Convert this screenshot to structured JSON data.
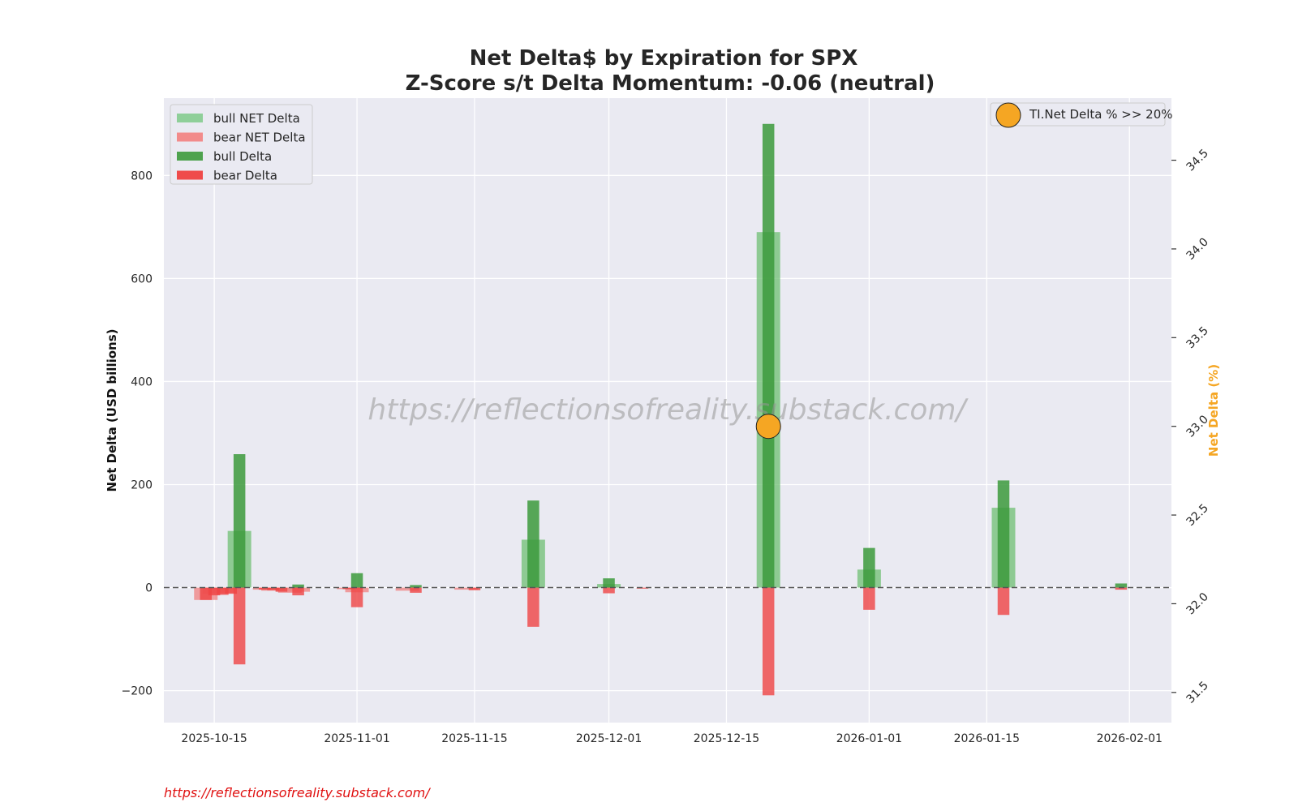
{
  "chart_data": {
    "type": "bar",
    "title": "Net Delta$ by Expiration for SPX",
    "subtitle": "Z-Score s/t Delta Momentum: -0.06 (neutral)",
    "ylabel": "Net Delta (USD billions)",
    "y2label": "Net Delta (%)",
    "ylim": [
      -262,
      950
    ],
    "yticks": [
      -200,
      0,
      200,
      400,
      600,
      800
    ],
    "y2lim": [
      31.33,
      34.85
    ],
    "y2ticks": [
      31.5,
      32.0,
      32.5,
      33.0,
      33.5,
      34.0,
      34.5
    ],
    "xlim": [
      "2025-10-09",
      "2026-02-06"
    ],
    "xticks": [
      "2025-10-15",
      "2025-11-01",
      "2025-11-15",
      "2025-12-01",
      "2025-12-15",
      "2026-01-01",
      "2026-01-15",
      "2026-02-01"
    ],
    "grid": true,
    "zero_line": "dashed",
    "legend_left": {
      "placement": "top-left",
      "entries": [
        {
          "label": "bull NET Delta",
          "color": "#8fcf99"
        },
        {
          "label": "bear NET Delta",
          "color": "#f28b8b"
        },
        {
          "label": "bull Delta",
          "color": "#4ea24e"
        },
        {
          "label": "bear Delta",
          "color": "#ef4b4b"
        }
      ]
    },
    "legend_right": {
      "placement": "top-right",
      "entries": [
        {
          "label": "TI.Net Delta % >> 20%",
          "color": "#f5a623"
        }
      ]
    },
    "series": [
      {
        "name": "bull NET Delta",
        "color": "#6fbf73",
        "points": [
          {
            "x": "2025-10-18",
            "y": 110
          },
          {
            "x": "2025-12-01",
            "y": 7
          },
          {
            "x": "2025-11-22",
            "y": 93
          },
          {
            "x": "2025-12-20",
            "y": 690
          },
          {
            "x": "2026-01-01",
            "y": 35
          },
          {
            "x": "2026-01-17",
            "y": 155
          }
        ]
      },
      {
        "name": "bear NET Delta",
        "color": "#f08080",
        "points": [
          {
            "x": "2025-10-14",
            "y": -24
          },
          {
            "x": "2025-10-15",
            "y": -12
          },
          {
            "x": "2025-10-16",
            "y": -10
          },
          {
            "x": "2025-10-21",
            "y": -4
          },
          {
            "x": "2025-10-22",
            "y": -6
          },
          {
            "x": "2025-10-24",
            "y": -10
          },
          {
            "x": "2025-10-25",
            "y": -8
          },
          {
            "x": "2025-10-31",
            "y": -3
          },
          {
            "x": "2025-11-01",
            "y": -9
          },
          {
            "x": "2025-11-07",
            "y": -6
          },
          {
            "x": "2025-11-14",
            "y": -4
          }
        ]
      },
      {
        "name": "bull Delta",
        "color": "#3c9a3c",
        "points": [
          {
            "x": "2025-10-18",
            "y": 259
          },
          {
            "x": "2025-10-25",
            "y": 6
          },
          {
            "x": "2025-11-01",
            "y": 28
          },
          {
            "x": "2025-11-08",
            "y": 5
          },
          {
            "x": "2025-11-22",
            "y": 169
          },
          {
            "x": "2025-12-01",
            "y": 18
          },
          {
            "x": "2025-12-20",
            "y": 900
          },
          {
            "x": "2026-01-01",
            "y": 77
          },
          {
            "x": "2026-01-17",
            "y": 208
          },
          {
            "x": "2026-01-31",
            "y": 8
          }
        ]
      },
      {
        "name": "bear Delta",
        "color": "#ef4444",
        "points": [
          {
            "x": "2025-10-14",
            "y": -24
          },
          {
            "x": "2025-10-15",
            "y": -15
          },
          {
            "x": "2025-10-16",
            "y": -14
          },
          {
            "x": "2025-10-17",
            "y": -12
          },
          {
            "x": "2025-10-18",
            "y": -149
          },
          {
            "x": "2025-10-21",
            "y": -4
          },
          {
            "x": "2025-10-22",
            "y": -5
          },
          {
            "x": "2025-10-23",
            "y": -8
          },
          {
            "x": "2025-10-25",
            "y": -15
          },
          {
            "x": "2025-10-31",
            "y": -3
          },
          {
            "x": "2025-11-01",
            "y": -38
          },
          {
            "x": "2025-11-08",
            "y": -10
          },
          {
            "x": "2025-11-15",
            "y": -5
          },
          {
            "x": "2025-11-22",
            "y": -76
          },
          {
            "x": "2025-12-01",
            "y": -11
          },
          {
            "x": "2025-12-05",
            "y": -2
          },
          {
            "x": "2025-12-20",
            "y": -209
          },
          {
            "x": "2026-01-01",
            "y": -43
          },
          {
            "x": "2026-01-17",
            "y": -53
          },
          {
            "x": "2026-01-31",
            "y": -4
          }
        ]
      }
    ],
    "markers": [
      {
        "name": "TI.Net Delta % >> 20%",
        "x": "2025-12-20",
        "y2": 33.0,
        "color": "#f5a623"
      }
    ]
  },
  "watermark": "https://reflectionsofreality.substack.com/",
  "footer": "https://reflectionsofreality.substack.com/"
}
